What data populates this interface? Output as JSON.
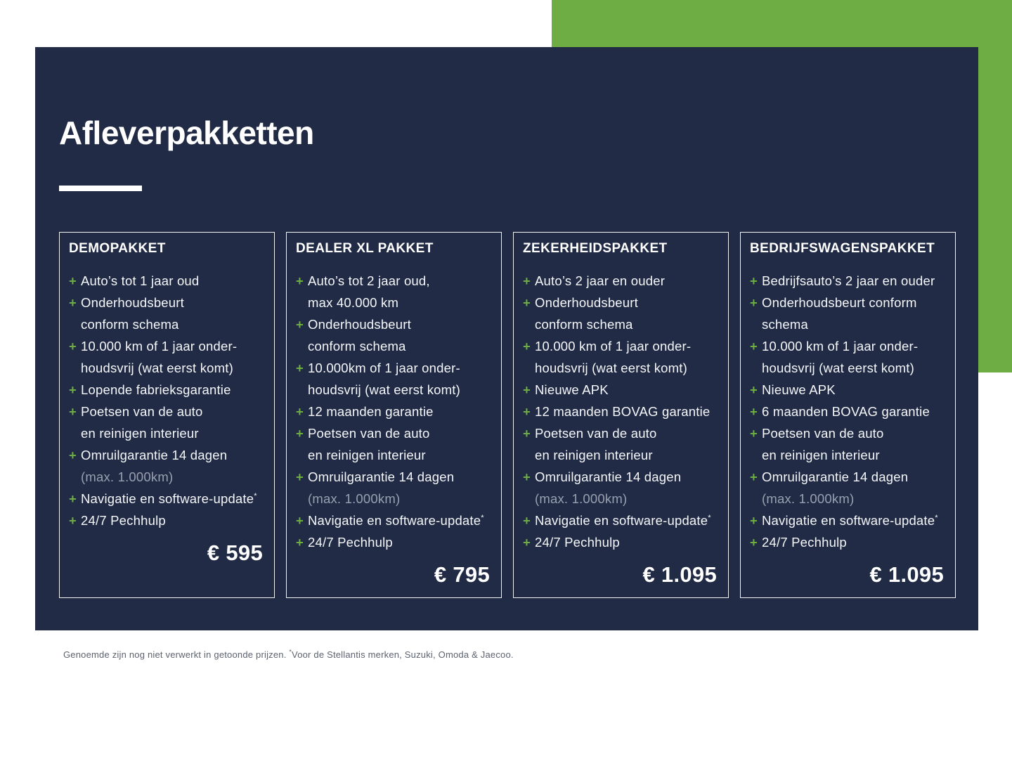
{
  "title": "Afleverpakketten",
  "colors": {
    "navy": "#212B45",
    "green": "#6EAC44",
    "muted_text": "#98A0B0",
    "footnote_text": "#5C6370"
  },
  "packages": [
    {
      "name": "DEMOPAKKET",
      "price": "€ 595",
      "lines": [
        {
          "plus": true,
          "text": "Auto’s tot 1 jaar oud"
        },
        {
          "plus": true,
          "text": "Onderhoudsbeurt"
        },
        {
          "plus": false,
          "text": "conform schema"
        },
        {
          "plus": true,
          "text": "10.000 km of 1 jaar onder-"
        },
        {
          "plus": false,
          "text": "houdsvrij (wat eerst komt)"
        },
        {
          "plus": true,
          "text": "Lopende fabrieksgarantie"
        },
        {
          "plus": true,
          "text": "Poetsen van de auto"
        },
        {
          "plus": false,
          "text": "en reinigen interieur"
        },
        {
          "plus": true,
          "text": "Omruilgarantie 14 dagen"
        },
        {
          "plus": false,
          "text": "(max. 1.000km)",
          "muted": true
        },
        {
          "plus": true,
          "text": "Navigatie en software-update",
          "sup": "*"
        },
        {
          "plus": true,
          "text": "24/7 Pechhulp"
        }
      ]
    },
    {
      "name": "DEALER XL PAKKET",
      "price": "€ 795",
      "lines": [
        {
          "plus": true,
          "text": "Auto’s tot 2 jaar oud,"
        },
        {
          "plus": false,
          "text": "max 40.000 km"
        },
        {
          "plus": true,
          "text": "Onderhoudsbeurt"
        },
        {
          "plus": false,
          "text": "conform schema"
        },
        {
          "plus": true,
          "text": "10.000km of 1 jaar onder-"
        },
        {
          "plus": false,
          "text": "houdsvrij (wat eerst komt)"
        },
        {
          "plus": true,
          "text": "12 maanden garantie"
        },
        {
          "plus": true,
          "text": "Poetsen van de auto"
        },
        {
          "plus": false,
          "text": "en reinigen interieur"
        },
        {
          "plus": true,
          "text": "Omruilgarantie 14 dagen"
        },
        {
          "plus": false,
          "text": "(max. 1.000km)",
          "muted": true
        },
        {
          "plus": true,
          "text": "Navigatie en software-update",
          "sup": "*"
        },
        {
          "plus": true,
          "text": "24/7 Pechhulp"
        }
      ]
    },
    {
      "name": "ZEKERHEIDSPAKKET",
      "price": "€ 1.095",
      "lines": [
        {
          "plus": true,
          "text": "Auto’s 2 jaar en ouder"
        },
        {
          "plus": true,
          "text": "Onderhoudsbeurt"
        },
        {
          "plus": false,
          "text": "conform schema"
        },
        {
          "plus": true,
          "text": "10.000 km of 1 jaar onder-"
        },
        {
          "plus": false,
          "text": "houdsvrij (wat eerst komt)"
        },
        {
          "plus": true,
          "text": "Nieuwe APK"
        },
        {
          "plus": true,
          "text": "12 maanden BOVAG garantie"
        },
        {
          "plus": true,
          "text": "Poetsen van de auto"
        },
        {
          "plus": false,
          "text": "en reinigen interieur"
        },
        {
          "plus": true,
          "text": "Omruilgarantie 14 dagen"
        },
        {
          "plus": false,
          "text": "(max. 1.000km)",
          "muted": true
        },
        {
          "plus": true,
          "text": "Navigatie en software-update",
          "sup": "*"
        },
        {
          "plus": true,
          "text": "24/7 Pechhulp"
        }
      ]
    },
    {
      "name": "BEDRIJFSWAGENSPAKKET",
      "price": "€ 1.095",
      "lines": [
        {
          "plus": true,
          "text": "Bedrijfsauto’s 2 jaar en ouder"
        },
        {
          "plus": true,
          "text": "Onderhoudsbeurt conform"
        },
        {
          "plus": false,
          "text": "schema"
        },
        {
          "plus": true,
          "text": "10.000 km of 1 jaar onder-"
        },
        {
          "plus": false,
          "text": "houdsvrij (wat eerst komt)"
        },
        {
          "plus": true,
          "text": "Nieuwe APK"
        },
        {
          "plus": true,
          "text": "6 maanden BOVAG garantie"
        },
        {
          "plus": true,
          "text": "Poetsen van de auto"
        },
        {
          "plus": false,
          "text": "en reinigen interieur"
        },
        {
          "plus": true,
          "text": "Omruilgarantie 14 dagen"
        },
        {
          "plus": false,
          "text": "(max. 1.000km)",
          "muted": true
        },
        {
          "plus": true,
          "text": "Navigatie en software-update",
          "sup": "*"
        },
        {
          "plus": true,
          "text": "24/7 Pechhulp"
        }
      ]
    }
  ],
  "footnote": {
    "prefix": "Genoemde zijn nog niet verwerkt in getoonde prijzen. ",
    "asterisk": "*",
    "suffix": "Voor de Stellantis merken, Suzuki, Omoda & Jaecoo."
  }
}
